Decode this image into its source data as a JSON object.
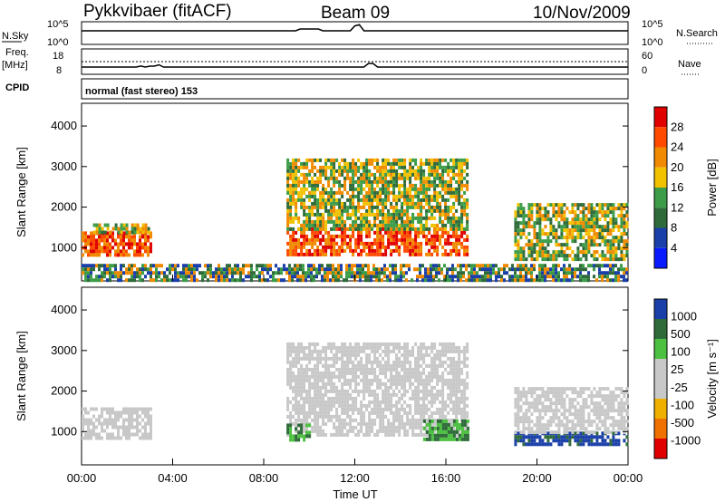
{
  "header": {
    "station": "Pykkvibaer (fitACF)",
    "beam": "Beam 09",
    "date": "10/Nov/2009"
  },
  "strip_noise": {
    "left_label": "N.Sky",
    "right_label": "N.Search",
    "left_ticks": [
      "10^5",
      "10^0"
    ],
    "right_ticks": [
      "10^5",
      "10^0"
    ]
  },
  "strip_freq": {
    "left_label_1": "Freq.",
    "left_label_2": "[MHz]",
    "right_label": "Nave",
    "left_ticks": [
      "18",
      "8"
    ],
    "right_ticks": [
      "60",
      "0"
    ]
  },
  "strip_cpid": {
    "label": "CPID",
    "text": "normal (fast stereo) 153"
  },
  "x_axis": {
    "label": "Time UT",
    "ticks": [
      "00:00",
      "04:00",
      "08:00",
      "12:00",
      "16:00",
      "20:00",
      "00:00"
    ]
  },
  "colors": {
    "power": [
      "#0a1aff",
      "#1a3fa8",
      "#2f6b3a",
      "#3c9c48",
      "#f2c200",
      "#f08a00",
      "#ff4a00",
      "#e00000"
    ],
    "velocity": [
      "#1a3fa8",
      "#2f6b3a",
      "#4cc040",
      "#c8c8c8",
      "#c8c8c8",
      "#f0b000",
      "#f07000",
      "#e00000"
    ]
  },
  "chart_data": [
    {
      "type": "heatmap",
      "name": "power",
      "ylabel": "Slant Range [km]",
      "ylim": [
        180,
        4560
      ],
      "y_ticks": [
        1000,
        2000,
        3000,
        4000
      ],
      "xlim_hours": [
        0,
        24
      ],
      "colorbar": {
        "label": "Power [dB]",
        "ticks": [
          "4",
          "8",
          "12",
          "16",
          "20",
          "24",
          "28"
        ]
      },
      "regions": [
        {
          "t0": 0.0,
          "t1": 3.0,
          "r0": 850,
          "r1": 1400,
          "level": "high"
        },
        {
          "t0": 0.5,
          "t1": 3.0,
          "r0": 1400,
          "r1": 1600,
          "level": "mid"
        },
        {
          "t0": 9.0,
          "t1": 17.0,
          "r0": 800,
          "r1": 1500,
          "level": "high"
        },
        {
          "t0": 9.0,
          "t1": 17.0,
          "r0": 1500,
          "r1": 3200,
          "level": "mid"
        },
        {
          "t0": 19.0,
          "t1": 24.0,
          "r0": 700,
          "r1": 2100,
          "level": "mid"
        },
        {
          "t0": 0.0,
          "t1": 24.0,
          "r0": 180,
          "r1": 600,
          "level": "low"
        }
      ]
    },
    {
      "type": "heatmap",
      "name": "velocity",
      "ylabel": "Slant Range [km]",
      "ylim": [
        180,
        4560
      ],
      "y_ticks": [
        1000,
        2000,
        3000,
        4000
      ],
      "xlim_hours": [
        0,
        24
      ],
      "colorbar": {
        "label": "Velocity [m s⁻¹]",
        "ticks": [
          "1000",
          "500",
          "100",
          "25",
          "-25",
          "-100",
          "-500",
          "-1000"
        ]
      },
      "regions": [
        {
          "t0": 0.0,
          "t1": 3.0,
          "r0": 850,
          "r1": 1600,
          "level": "grey"
        },
        {
          "t0": 9.0,
          "t1": 17.0,
          "r0": 900,
          "r1": 3200,
          "level": "grey"
        },
        {
          "t0": 9.0,
          "t1": 10.0,
          "r0": 800,
          "r1": 1200,
          "level": "green"
        },
        {
          "t0": 15.0,
          "t1": 17.0,
          "r0": 800,
          "r1": 1300,
          "level": "green"
        },
        {
          "t0": 19.0,
          "t1": 24.0,
          "r0": 700,
          "r1": 1000,
          "level": "blue"
        },
        {
          "t0": 19.0,
          "t1": 24.0,
          "r0": 1000,
          "r1": 2100,
          "level": "grey"
        }
      ]
    }
  ]
}
